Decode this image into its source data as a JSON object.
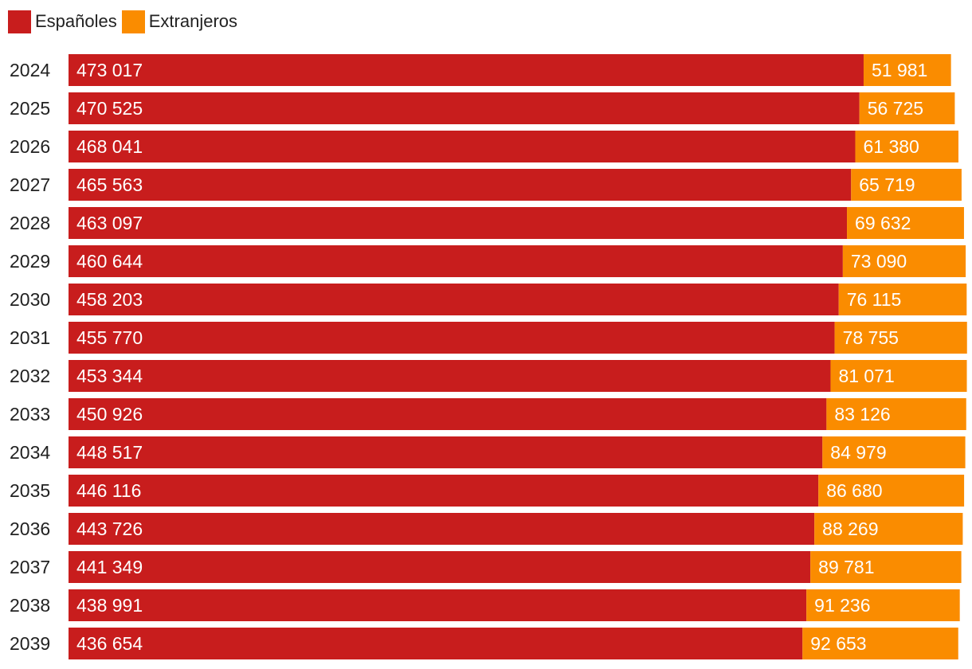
{
  "chart_data": {
    "type": "bar",
    "orientation": "horizontal",
    "stacked": true,
    "title": "",
    "xlabel": "",
    "ylabel": "",
    "categories": [
      "2024",
      "2025",
      "2026",
      "2027",
      "2028",
      "2029",
      "2030",
      "2031",
      "2032",
      "2033",
      "2034",
      "2035",
      "2036",
      "2037",
      "2038",
      "2039"
    ],
    "series": [
      {
        "name": "Españoles",
        "color": "#c81d1d",
        "values": [
          473017,
          470525,
          468041,
          465563,
          463097,
          460644,
          458203,
          455770,
          453344,
          450926,
          448517,
          446116,
          443726,
          441349,
          438991,
          436654
        ],
        "labels": [
          "473 017",
          "470 525",
          "468 041",
          "465 563",
          "463 097",
          "460 644",
          "458 203",
          "455 770",
          "453 344",
          "450 926",
          "448 517",
          "446 116",
          "443 726",
          "441 349",
          "438 991",
          "436 654"
        ]
      },
      {
        "name": "Extranjeros",
        "color": "#fa8c00",
        "values": [
          51981,
          56725,
          61380,
          65719,
          69632,
          73090,
          76115,
          78755,
          81071,
          83126,
          84979,
          86680,
          88269,
          89781,
          91236,
          92653
        ],
        "labels": [
          "51 981",
          "56 725",
          "61 380",
          "65 719",
          "69 632",
          "73 090",
          "76 115",
          "78 755",
          "81 071",
          "83 126",
          "84 979",
          "86 680",
          "88 269",
          "89 781",
          "91 236",
          "92 653"
        ]
      }
    ],
    "legend_position": "top-left",
    "grid": false
  },
  "legend": {
    "items": [
      {
        "label": "Españoles",
        "color": "#c81d1d"
      },
      {
        "label": "Extranjeros",
        "color": "#fa8c00"
      }
    ]
  }
}
